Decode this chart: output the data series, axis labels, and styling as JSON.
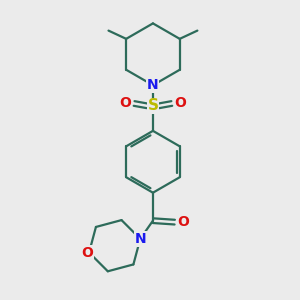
{
  "background_color": "#ebebeb",
  "bond_color": "#2d6b5a",
  "N_color": "#1a1aee",
  "O_color": "#dd1111",
  "S_color": "#bbbb00",
  "line_width": 1.6,
  "figsize": [
    3.0,
    3.0
  ],
  "dpi": 100,
  "xlim": [
    0,
    10
  ],
  "ylim": [
    0,
    10
  ]
}
